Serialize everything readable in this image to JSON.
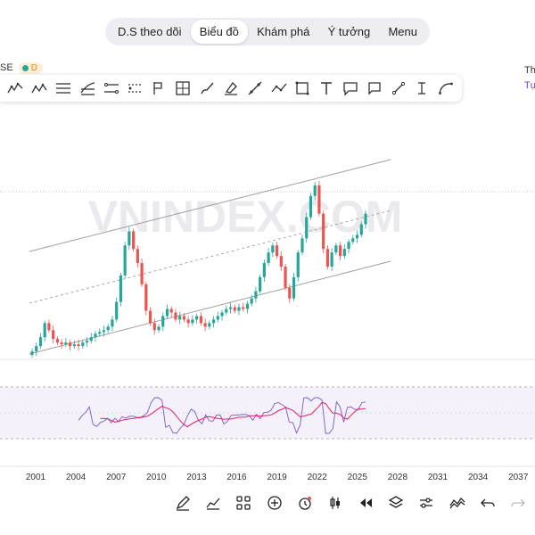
{
  "nav": {
    "tabs": [
      {
        "label": "D.S theo dõi",
        "active": false
      },
      {
        "label": "Biểu đồ",
        "active": true
      },
      {
        "label": "Khám phá",
        "active": false
      },
      {
        "label": "Ý tưởng",
        "active": false
      },
      {
        "label": "Menu",
        "active": false
      }
    ]
  },
  "symbol": {
    "text": "SE",
    "interval_badge": "D",
    "status_color": "#26a69a"
  },
  "side_panel": {
    "line1": "Th",
    "line2": "Tự"
  },
  "drawing_tools": [
    "elliott-wave-icon",
    "abcde-pattern-icon",
    "horizontal-lines-icon",
    "fib-channel-icon",
    "parallel-channel-icon",
    "regression-trend-icon",
    "pitchfork-icon",
    "gann-box-icon",
    "brush-icon",
    "highlighter-icon",
    "trend-line-icon",
    "path-icon",
    "rectangle-icon",
    "text-icon",
    "callout-icon",
    "note-icon",
    "ray-icon",
    "price-range-icon",
    "arc-icon"
  ],
  "chart": {
    "watermark": "VNINDEX.COM",
    "x_tick_labels": [
      "2001",
      "2004",
      "2007",
      "2010",
      "2013",
      "2016",
      "2019",
      "2022",
      "2025",
      "2028",
      "2031",
      "2034",
      "2037"
    ],
    "up_color": "#26a69a",
    "down_color": "#ef5350",
    "rsi_line_color": "#7e57c2",
    "rsi_ma_color": "#e91e63",
    "channel_color": "#9e9e9e"
  },
  "chart_data": {
    "type": "candlestick",
    "x_tick_labels": [
      "2001",
      "2004",
      "2007",
      "2010",
      "2013",
      "2016",
      "2019",
      "2022",
      "2025",
      "2028",
      "2031",
      "2034",
      "2037"
    ],
    "candles_relative_close": [
      0.02,
      0.05,
      0.1,
      0.18,
      0.14,
      0.09,
      0.07,
      0.06,
      0.07,
      0.05,
      0.06,
      0.05,
      0.07,
      0.08,
      0.1,
      0.12,
      0.13,
      0.14,
      0.16,
      0.2,
      0.3,
      0.45,
      0.62,
      0.7,
      0.6,
      0.52,
      0.4,
      0.25,
      0.18,
      0.14,
      0.16,
      0.22,
      0.26,
      0.24,
      0.2,
      0.22,
      0.2,
      0.18,
      0.2,
      0.22,
      0.18,
      0.16,
      0.18,
      0.2,
      0.22,
      0.24,
      0.26,
      0.27,
      0.25,
      0.27,
      0.26,
      0.29,
      0.32,
      0.36,
      0.44,
      0.52,
      0.58,
      0.62,
      0.56,
      0.5,
      0.38,
      0.32,
      0.44,
      0.58,
      0.66,
      0.78,
      0.9,
      0.96,
      0.8,
      0.6,
      0.5,
      0.58,
      0.62,
      0.56,
      0.6,
      0.64,
      0.66,
      0.68,
      0.74,
      0.8
    ],
    "rsi": {
      "levels": [
        70,
        50,
        30
      ]
    }
  },
  "bottom_tools": [
    "pen-icon",
    "chart-type-icon",
    "grid-layout-icon",
    "add-indicator-icon",
    "alert-clock-icon",
    "candle-icon",
    "rewind-icon",
    "layers-icon",
    "settings-sliders-icon",
    "compare-icon",
    "undo-icon",
    "redo-icon"
  ]
}
